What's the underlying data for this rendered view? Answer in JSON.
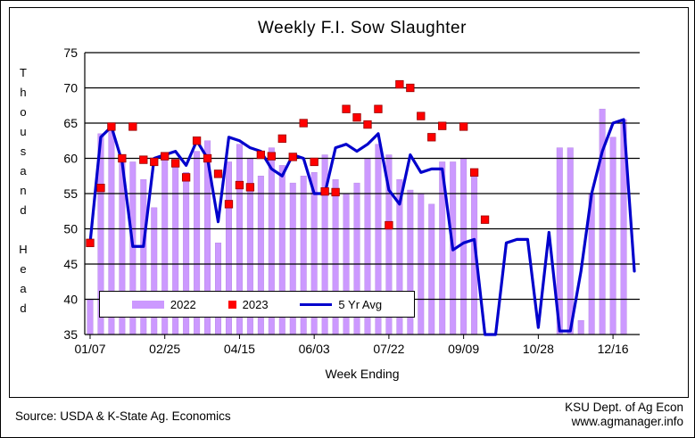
{
  "footer": {
    "source": "Source:  USDA & K-State Ag. Economics",
    "credit_line1": "KSU Dept. of Ag Econ",
    "credit_line2": "www.agmanager.info"
  },
  "chart_data": {
    "type": "combo",
    "title": "Weekly F.I. Sow Slaughter",
    "xlabel": "Week Ending",
    "ylabel": "Thousand Head",
    "ylim": [
      35,
      75
    ],
    "ytick_step": 5,
    "grid": "horizontal",
    "legend_position": "inside-bottom-left",
    "colors": {
      "bar_2022": "#CC99FF",
      "marker_2023": "#FF0000",
      "line_5yr": "#0000CC",
      "grid": "#000000"
    },
    "categories": [
      "01/07",
      "01/14",
      "01/21",
      "01/28",
      "02/04",
      "02/11",
      "02/18",
      "02/25",
      "03/04",
      "03/11",
      "03/18",
      "03/25",
      "04/01",
      "04/08",
      "04/15",
      "04/22",
      "04/29",
      "05/06",
      "05/13",
      "05/20",
      "05/27",
      "06/03",
      "06/10",
      "06/17",
      "06/24",
      "07/01",
      "07/08",
      "07/15",
      "07/22",
      "07/29",
      "08/05",
      "08/12",
      "08/19",
      "08/26",
      "09/02",
      "09/09",
      "09/16",
      "09/23",
      "09/30",
      "10/07",
      "10/14",
      "10/21",
      "10/28",
      "11/04",
      "11/11",
      "11/18",
      "11/25",
      "12/02",
      "12/09",
      "12/16",
      "12/23",
      "12/30"
    ],
    "x_tick_indices": [
      0,
      7,
      14,
      21,
      28,
      35,
      42,
      49
    ],
    "series": [
      {
        "name": "2022",
        "style": "bar",
        "color": "#CC99FF",
        "values": [
          40,
          63.5,
          64.5,
          60,
          59.5,
          57,
          53,
          60,
          59.5,
          58,
          61,
          62.5,
          48,
          59.5,
          62,
          60,
          57.5,
          61.5,
          59,
          56.5,
          57.5,
          58,
          60.5,
          57,
          55,
          56.5,
          60,
          62,
          60.5,
          57,
          55.5,
          55,
          53.5,
          59.5,
          59.5,
          60,
          58,
          null,
          null,
          null,
          null,
          null,
          null,
          null,
          61.5,
          61.5,
          37,
          55,
          67,
          63,
          65.5,
          null
        ]
      },
      {
        "name": "2023",
        "style": "scatter-square",
        "color": "#FF0000",
        "values": [
          48,
          55.8,
          64.5,
          60,
          64.5,
          59.8,
          59.5,
          60.3,
          59.3,
          57.3,
          62.5,
          60,
          57.8,
          53.5,
          56.2,
          55.9,
          60.5,
          60.3,
          62.8,
          60.2,
          65,
          59.5,
          55.3,
          55.2,
          67,
          65.8,
          64.8,
          67,
          50.5,
          70.5,
          70,
          66,
          63,
          64.6,
          null,
          64.5,
          58,
          51.3,
          null,
          null,
          null,
          null,
          null,
          null,
          null,
          null,
          null,
          null,
          null,
          null,
          null,
          null
        ]
      },
      {
        "name": "5 Yr Avg",
        "style": "line",
        "color": "#0000CC",
        "values": [
          48,
          63,
          64.5,
          59.5,
          47.5,
          47.5,
          60,
          60.5,
          61,
          59,
          62.5,
          60,
          51,
          63,
          62.5,
          61.5,
          61,
          58.5,
          57.5,
          60.5,
          60,
          55,
          55,
          61.5,
          62,
          61,
          62,
          63.5,
          55.5,
          53.5,
          60.5,
          58,
          58.5,
          58.5,
          47,
          48,
          48.5,
          35,
          35,
          48,
          48.5,
          48.5,
          36,
          49.5,
          35.5,
          35.5,
          44,
          55,
          61,
          65,
          65.5,
          44
        ]
      }
    ]
  }
}
